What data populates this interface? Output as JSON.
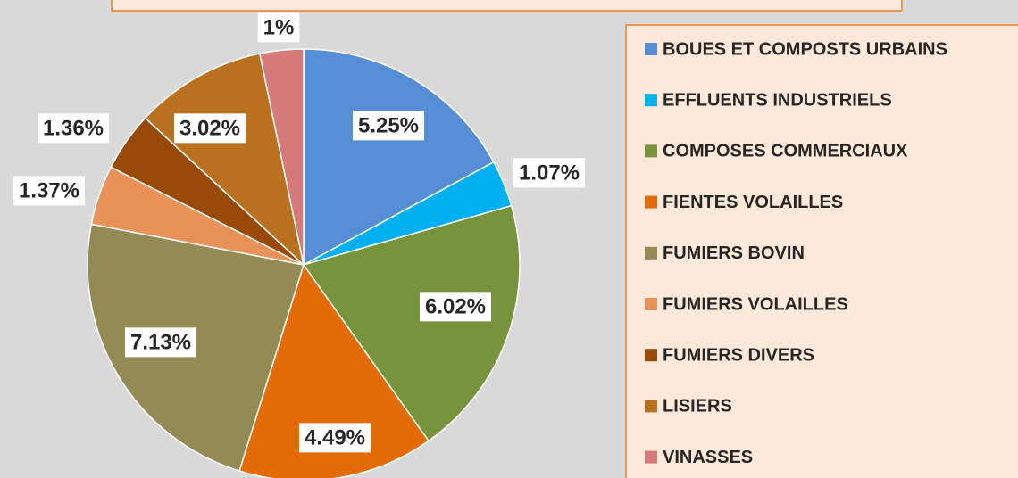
{
  "chart_data": {
    "type": "pie",
    "categories": [
      "BOUES ET COMPOSTS URBAINS",
      "EFFLUENTS INDUSTRIELS",
      "COMPOSES COMMERCIAUX",
      "FIENTES VOLAILLES",
      "FUMIERS BOVIN",
      "FUMIERS VOLAILLES",
      "FUMIERS DIVERS",
      "LISIERS",
      "VINASSES"
    ],
    "values": [
      5.25,
      1.07,
      6.02,
      4.49,
      7.13,
      1.37,
      1.36,
      3.02,
      1
    ],
    "value_labels": [
      "5.25%",
      "1.07%",
      "6.02%",
      "4.49%",
      "7.13%",
      "1.37%",
      "1.36%",
      "3.02%",
      "1%"
    ],
    "colors": [
      "#558ed5",
      "#00b0f0",
      "#77933c",
      "#e36c09",
      "#948a54",
      "#e8925a",
      "#984807",
      "#b9701f",
      "#d47a7a"
    ],
    "legend": "right"
  }
}
